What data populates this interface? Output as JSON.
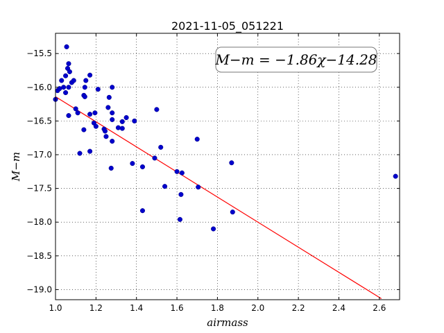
{
  "chart_data": {
    "type": "scatter",
    "title": "2021-11-05_051221",
    "xlabel": "airmass",
    "ylabel": "M−m",
    "xlim": [
      1.0,
      2.7
    ],
    "ylim": [
      -19.15,
      -15.2
    ],
    "x_ticks": [
      "1.0",
      "1.2",
      "1.4",
      "1.6",
      "1.8",
      "2.0",
      "2.2",
      "2.4",
      "2.6"
    ],
    "y_ticks": [
      "−15.5",
      "−16.0",
      "−16.5",
      "−17.0",
      "−17.5",
      "−18.0",
      "−18.5",
      "−19.0"
    ],
    "grid": true,
    "annotation": "M−m = −1.86χ−14.28",
    "fit": {
      "slope": -1.86,
      "intercept": -14.28,
      "x_range": [
        1.0,
        2.61
      ],
      "color": "#ff0000"
    },
    "point_color": "#0000cc",
    "points": [
      {
        "x": 1.0,
        "y": -16.18
      },
      {
        "x": 1.01,
        "y": -16.05
      },
      {
        "x": 1.02,
        "y": -16.02
      },
      {
        "x": 1.03,
        "y": -15.9
      },
      {
        "x": 1.04,
        "y": -16.0
      },
      {
        "x": 1.05,
        "y": -16.08
      },
      {
        "x": 1.05,
        "y": -15.83
      },
      {
        "x": 1.055,
        "y": -15.4
      },
      {
        "x": 1.06,
        "y": -15.72
      },
      {
        "x": 1.065,
        "y": -15.65
      },
      {
        "x": 1.07,
        "y": -15.77
      },
      {
        "x": 1.065,
        "y": -16.0
      },
      {
        "x": 1.065,
        "y": -16.42
      },
      {
        "x": 1.08,
        "y": -15.93
      },
      {
        "x": 1.09,
        "y": -15.9
      },
      {
        "x": 1.1,
        "y": -16.32
      },
      {
        "x": 1.11,
        "y": -16.38
      },
      {
        "x": 1.12,
        "y": -16.98
      },
      {
        "x": 1.14,
        "y": -16.12
      },
      {
        "x": 1.145,
        "y": -16.14
      },
      {
        "x": 1.145,
        "y": -16.0
      },
      {
        "x": 1.14,
        "y": -16.63
      },
      {
        "x": 1.15,
        "y": -15.9
      },
      {
        "x": 1.17,
        "y": -15.82
      },
      {
        "x": 1.17,
        "y": -16.4
      },
      {
        "x": 1.17,
        "y": -16.95
      },
      {
        "x": 1.19,
        "y": -16.53
      },
      {
        "x": 1.195,
        "y": -16.38
      },
      {
        "x": 1.2,
        "y": -16.58
      },
      {
        "x": 1.21,
        "y": -16.03
      },
      {
        "x": 1.24,
        "y": -16.62
      },
      {
        "x": 1.245,
        "y": -16.65
      },
      {
        "x": 1.25,
        "y": -16.73
      },
      {
        "x": 1.26,
        "y": -16.3
      },
      {
        "x": 1.265,
        "y": -16.15
      },
      {
        "x": 1.275,
        "y": -17.2
      },
      {
        "x": 1.28,
        "y": -16.38
      },
      {
        "x": 1.28,
        "y": -16.48
      },
      {
        "x": 1.28,
        "y": -16.0
      },
      {
        "x": 1.28,
        "y": -16.8
      },
      {
        "x": 1.31,
        "y": -16.6
      },
      {
        "x": 1.33,
        "y": -16.51
      },
      {
        "x": 1.33,
        "y": -16.61
      },
      {
        "x": 1.35,
        "y": -16.45
      },
      {
        "x": 1.38,
        "y": -17.13
      },
      {
        "x": 1.39,
        "y": -16.5
      },
      {
        "x": 1.43,
        "y": -17.18
      },
      {
        "x": 1.43,
        "y": -17.83
      },
      {
        "x": 1.49,
        "y": -17.05
      },
      {
        "x": 1.5,
        "y": -16.33
      },
      {
        "x": 1.52,
        "y": -16.89
      },
      {
        "x": 1.54,
        "y": -17.47
      },
      {
        "x": 1.6,
        "y": -17.25
      },
      {
        "x": 1.615,
        "y": -17.96
      },
      {
        "x": 1.62,
        "y": -17.59
      },
      {
        "x": 1.625,
        "y": -17.27
      },
      {
        "x": 1.7,
        "y": -16.77
      },
      {
        "x": 1.705,
        "y": -17.48
      },
      {
        "x": 1.78,
        "y": -18.1
      },
      {
        "x": 1.87,
        "y": -17.12
      },
      {
        "x": 1.875,
        "y": -17.85
      },
      {
        "x": 2.68,
        "y": -17.32
      }
    ]
  }
}
